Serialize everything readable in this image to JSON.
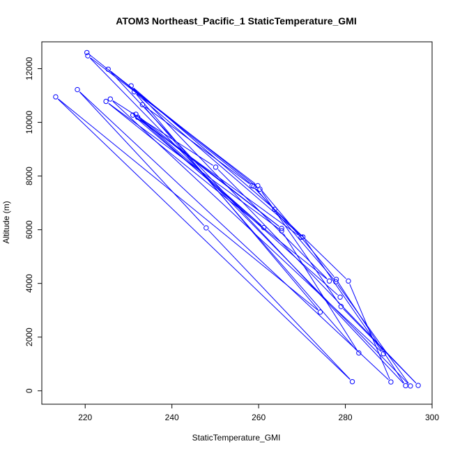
{
  "chart_data": {
    "type": "line",
    "title": "ATOM3 Northeast_Pacific_1 StaticTemperature_GMI",
    "xlabel": "StaticTemperature_GMI",
    "ylabel": "Altitude (m)",
    "xlim": [
      210,
      300
    ],
    "ylim": [
      -500,
      13000
    ],
    "xticks": [
      220,
      240,
      260,
      280,
      300
    ],
    "yticks": [
      0,
      2000,
      4000,
      6000,
      8000,
      10000,
      12000
    ],
    "grid": false,
    "series_color": "#0000ff",
    "points": [
      {
        "x": 220.4,
        "y": 12600
      },
      {
        "x": 258.9,
        "y": 7620
      },
      {
        "x": 277.8,
        "y": 4060
      },
      {
        "x": 295.0,
        "y": 180
      },
      {
        "x": 220.6,
        "y": 12480
      },
      {
        "x": 259.8,
        "y": 7640
      },
      {
        "x": 277.9,
        "y": 4150
      },
      {
        "x": 293.9,
        "y": 190
      },
      {
        "x": 225.3,
        "y": 11980
      },
      {
        "x": 260.3,
        "y": 7510
      },
      {
        "x": 279.0,
        "y": 3140
      },
      {
        "x": 296.8,
        "y": 200
      },
      {
        "x": 230.6,
        "y": 11360
      },
      {
        "x": 263.7,
        "y": 6760
      },
      {
        "x": 280.7,
        "y": 4090
      },
      {
        "x": 290.5,
        "y": 330
      },
      {
        "x": 218.2,
        "y": 11220
      },
      {
        "x": 247.9,
        "y": 6070
      },
      {
        "x": 281.6,
        "y": 340
      },
      {
        "x": 213.2,
        "y": 10950
      },
      {
        "x": 274.2,
        "y": 2930
      },
      {
        "x": 231.3,
        "y": 11140
      },
      {
        "x": 270.2,
        "y": 5730
      },
      {
        "x": 288.8,
        "y": 1380
      },
      {
        "x": 225.8,
        "y": 10870
      },
      {
        "x": 250.1,
        "y": 8330
      },
      {
        "x": 276.3,
        "y": 4090
      },
      {
        "x": 224.8,
        "y": 10780
      },
      {
        "x": 265.3,
        "y": 5960
      },
      {
        "x": 283.1,
        "y": 1410
      },
      {
        "x": 233.2,
        "y": 10660
      },
      {
        "x": 258.5,
        "y": 7640
      },
      {
        "x": 269.8,
        "y": 5720
      },
      {
        "x": 231.0,
        "y": 10270
      },
      {
        "x": 261.2,
        "y": 6080
      },
      {
        "x": 231.7,
        "y": 10300
      },
      {
        "x": 265.3,
        "y": 6050
      },
      {
        "x": 232.1,
        "y": 10190
      },
      {
        "x": 278.8,
        "y": 3490
      }
    ]
  }
}
